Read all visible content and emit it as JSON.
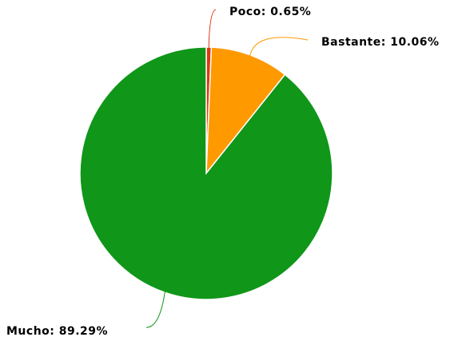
{
  "chart_data": {
    "type": "pie",
    "values": [
      0.65,
      10.06,
      89.29
    ],
    "value_labels": [
      "Poco: 0.65%",
      "Bastante: 10.06%",
      "Mucho: 89.29%"
    ],
    "colors": [
      "#dc3912",
      "#ff9900",
      "#109618"
    ]
  }
}
